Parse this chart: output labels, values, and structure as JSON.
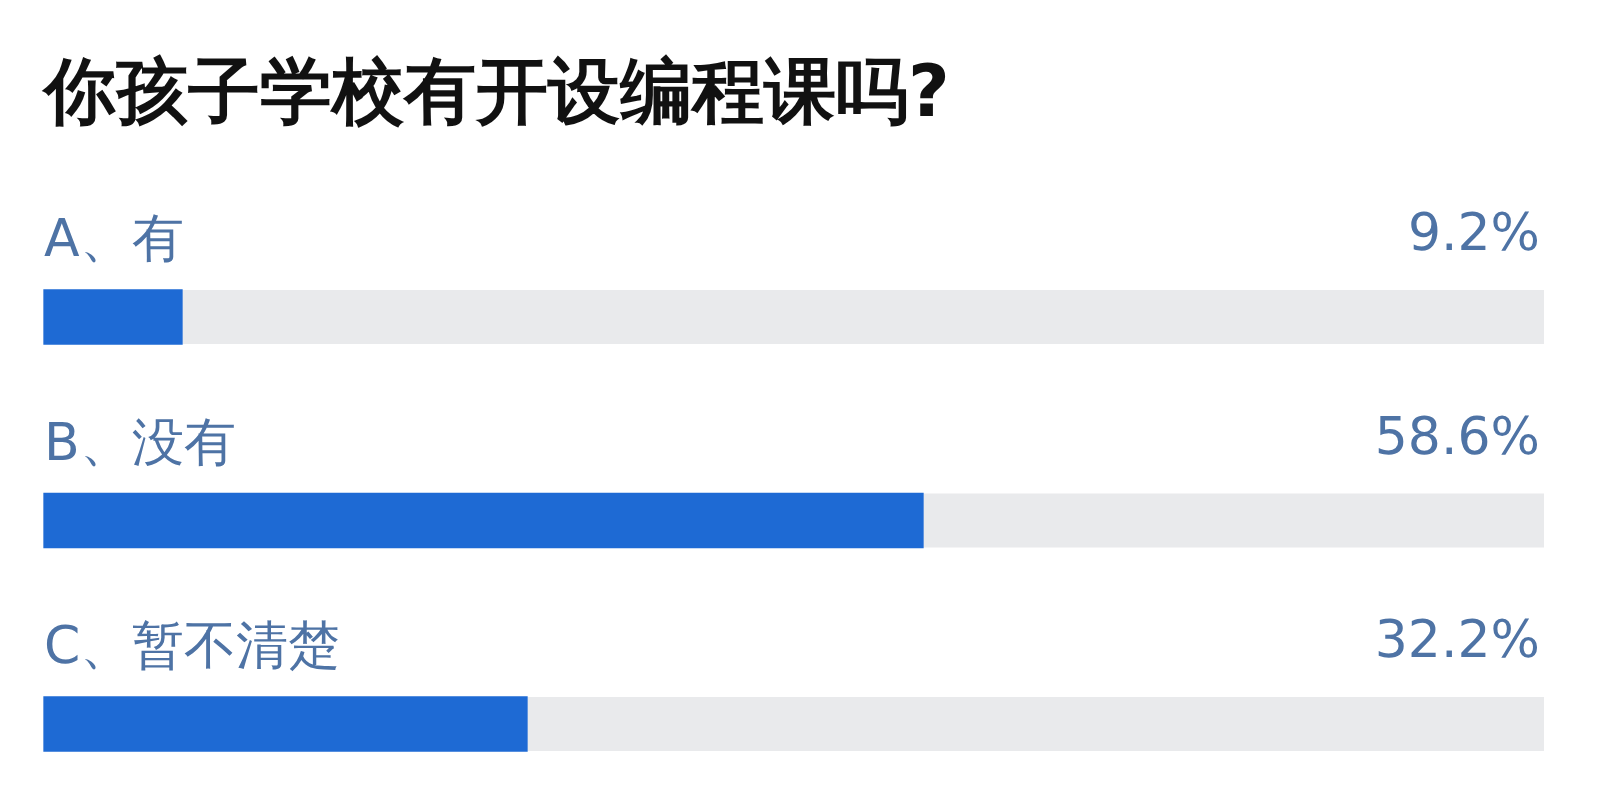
{
  "chart_data": {
    "type": "bar",
    "orientation": "horizontal",
    "title": "你孩子学校有开设编程课吗?",
    "categories": [
      "A、有",
      "B、没有",
      "C、暂不清楚"
    ],
    "values": [
      9.2,
      58.6,
      32.2
    ],
    "color": "#1e6ad4",
    "value_labels": [
      "9.2%",
      "58.6%",
      "32.2%"
    ],
    "xlim": [
      0,
      100
    ],
    "tick_labels": "y",
    "grid": false,
    "legend": false
  }
}
